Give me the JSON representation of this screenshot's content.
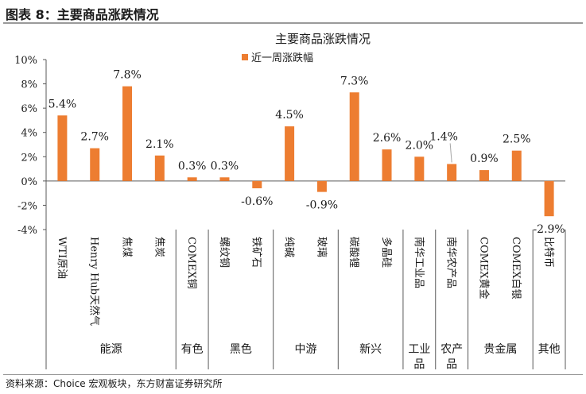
{
  "figure": {
    "title": "图表 8：主要商品涨跌情况",
    "source": "资料来源：Choice 宏观板块，东方财富证券研究所"
  },
  "chart_data": {
    "type": "bar",
    "title": "主要商品涨跌情况",
    "legend": {
      "position": "top",
      "label": "近一周涨跌幅"
    },
    "colors": {
      "bar": "#ED7D31",
      "axis": "#595959",
      "leader": "#a6a6a6",
      "rule": "#9a9a9a"
    },
    "ylim": [
      -4,
      10
    ],
    "yticks": [
      -4,
      -2,
      0,
      2,
      4,
      6,
      8,
      10
    ],
    "ytick_labels": [
      "-4%",
      "-2%",
      "0%",
      "2%",
      "4%",
      "6%",
      "8%",
      "10%"
    ],
    "grid": false,
    "series": [
      {
        "name": "近一周涨跌幅",
        "categories": [
          "WTI原油",
          "Henry Hub天然气",
          "焦煤",
          "焦炭",
          "COMEX铜",
          "螺纹钢",
          "铁矿石",
          "纯碱",
          "玻璃",
          "碳酸锂",
          "多晶硅",
          "南华工业品",
          "南华农产品",
          "COMEX黄金",
          "COMEX白银",
          "比特币"
        ],
        "values": [
          5.4,
          2.7,
          7.8,
          2.1,
          0.3,
          0.3,
          -0.6,
          4.5,
          -0.9,
          7.3,
          2.6,
          2.0,
          1.4,
          0.9,
          2.5,
          -2.9
        ],
        "labels": [
          "5.4%",
          "2.7%",
          "7.8%",
          "2.1%",
          "0.3%",
          "0.3%",
          "-0.6%",
          "4.5%",
          "-0.9%",
          "7.3%",
          "2.6%",
          "2.0%",
          "1.4%",
          "0.9%",
          "2.5%",
          "-2.9%"
        ]
      }
    ],
    "groups": [
      {
        "label": "能源",
        "count": 4
      },
      {
        "label": "有色",
        "count": 1
      },
      {
        "label": "黑色",
        "count": 2
      },
      {
        "label": "中游",
        "count": 2
      },
      {
        "label": "新兴",
        "count": 2
      },
      {
        "label": "工业品",
        "count": 1
      },
      {
        "label": "农产品",
        "count": 1
      },
      {
        "label": "贵金属",
        "count": 2
      },
      {
        "label": "其他",
        "count": 1
      }
    ]
  }
}
